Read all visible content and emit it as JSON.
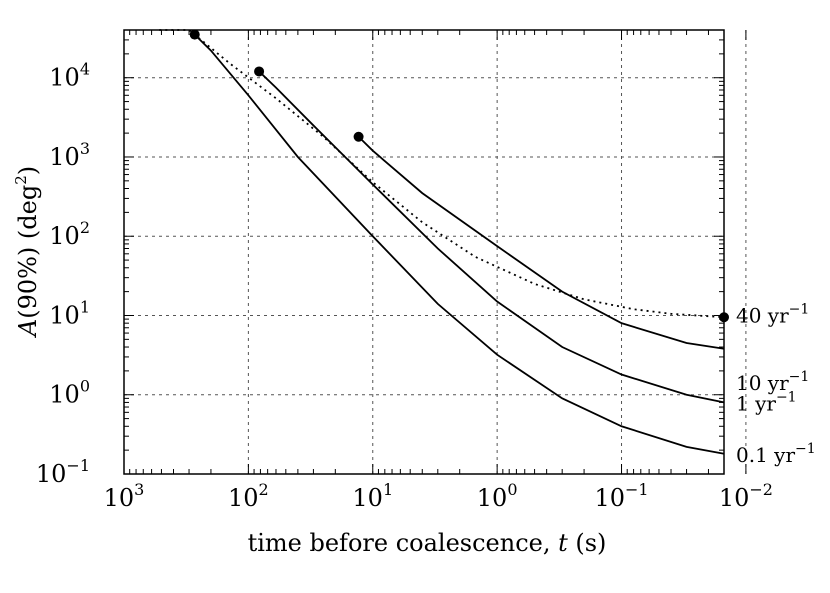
{
  "chart_data": {
    "type": "line",
    "xlabel_main": "time before coalescence, ",
    "xlabel_var": "t",
    "xlabel_unit": " (s)",
    "ylabel_var": "A",
    "ylabel_main": "(90%) (deg",
    "ylabel_exp": "2",
    "ylabel_end": ")",
    "x_scale": "log-reversed",
    "y_scale": "log",
    "xlim": [
      1000,
      0.015
    ],
    "ylim": [
      0.1,
      40000
    ],
    "x_ticks": [
      {
        "value": 1000,
        "base": "10",
        "exp": "3"
      },
      {
        "value": 100,
        "base": "10",
        "exp": "2"
      },
      {
        "value": 10,
        "base": "10",
        "exp": "1"
      },
      {
        "value": 1,
        "base": "10",
        "exp": "0"
      },
      {
        "value": 0.1,
        "base": "10",
        "exp": "−1"
      },
      {
        "value": 0.01,
        "base": "10",
        "exp": "−2"
      }
    ],
    "y_ticks": [
      {
        "value": 0.1,
        "base": "10",
        "exp": "−1"
      },
      {
        "value": 1,
        "base": "10",
        "exp": "0"
      },
      {
        "value": 10,
        "base": "10",
        "exp": "1"
      },
      {
        "value": 100,
        "base": "10",
        "exp": "2"
      },
      {
        "value": 1000,
        "base": "10",
        "exp": "3"
      },
      {
        "value": 10000,
        "base": "10",
        "exp": "4"
      }
    ],
    "grid": true,
    "series": [
      {
        "name": "40 yr⁻¹",
        "label_main": "40 yr",
        "label_exp": "−1",
        "style": "dotted",
        "t": [
          520,
          300,
          140,
          60,
          25,
          10,
          4,
          1.5,
          0.5,
          0.2,
          0.08,
          0.04,
          0.015
        ],
        "A": [
          40000,
          40000,
          15000,
          5500,
          1800,
          480,
          150,
          55,
          25,
          16,
          12,
          10.5,
          9.5
        ],
        "marker_at": 0.015
      },
      {
        "name": "10 yr⁻¹",
        "label_main": "10 yr",
        "label_exp": "−1",
        "style": "solid",
        "t": [
          13,
          10,
          4,
          1,
          0.3,
          0.1,
          0.03,
          0.015
        ],
        "A": [
          1800,
          1200,
          350,
          75,
          20,
          8,
          4.5,
          3.8
        ],
        "marker_at": 13
      },
      {
        "name": "1 yr⁻¹",
        "label_main": "1 yr",
        "label_exp": "−1",
        "style": "solid",
        "t": [
          82,
          60,
          30,
          10,
          3,
          1,
          0.3,
          0.1,
          0.03,
          0.015
        ],
        "A": [
          12000,
          7500,
          2500,
          450,
          70,
          15,
          4,
          1.8,
          1.0,
          0.8
        ],
        "marker_at": 82
      },
      {
        "name": "0.1 yr⁻¹",
        "label_main": "0.1 yr",
        "label_exp": "−1",
        "style": "solid",
        "t": [
          270,
          200,
          100,
          40,
          10,
          3,
          1,
          0.3,
          0.1,
          0.03,
          0.015
        ],
        "A": [
          35000,
          22000,
          6000,
          1000,
          100,
          14,
          3.2,
          0.9,
          0.4,
          0.22,
          0.18
        ],
        "marker_at": 270
      }
    ]
  }
}
